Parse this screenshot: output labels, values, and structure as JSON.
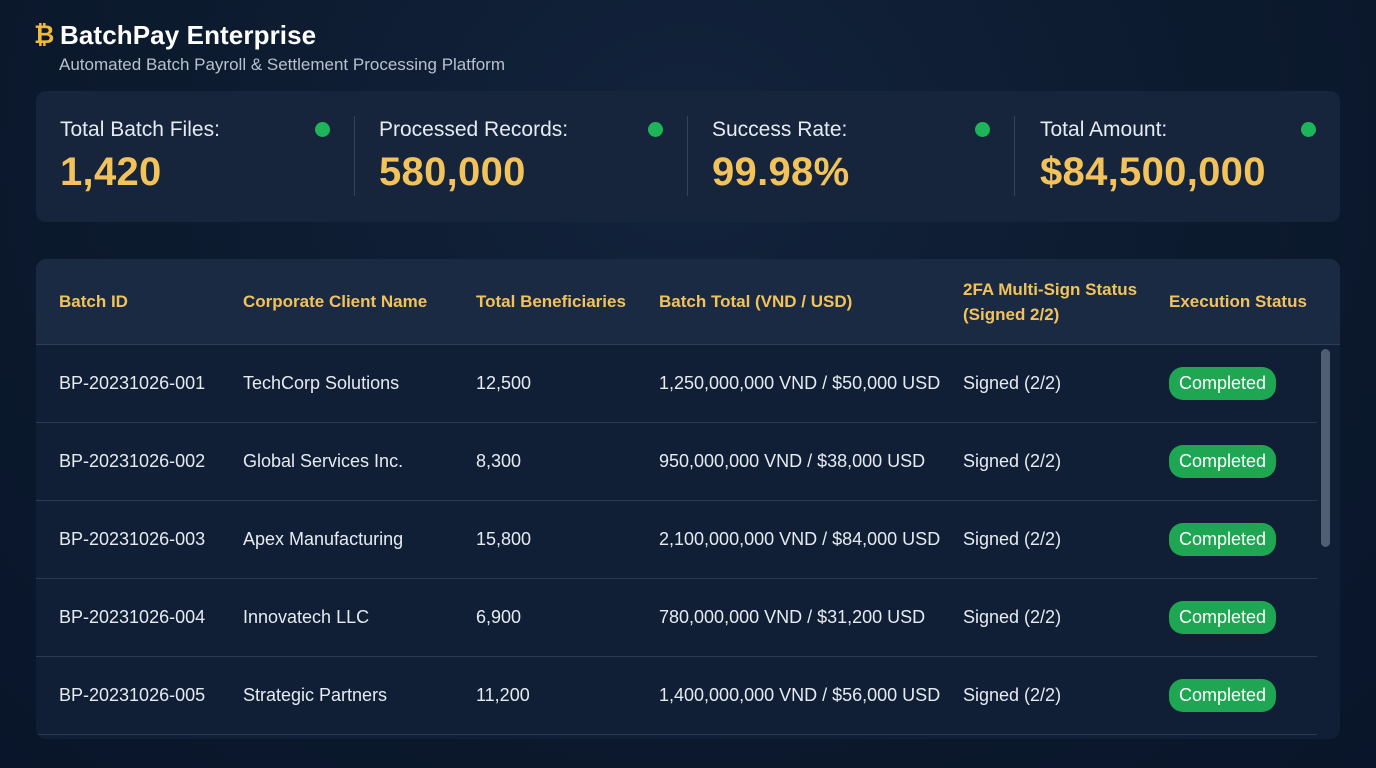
{
  "header": {
    "icon": "bitcoin-icon",
    "icon_glyph": "₿",
    "title": "BatchPay Enterprise",
    "subtitle": "Automated Batch Payroll & Settlement Processing Platform"
  },
  "stats": [
    {
      "label": "Total Batch Files:",
      "value": "1,420",
      "status_color": "#1db45a"
    },
    {
      "label": "Processed Records:",
      "value": "580,000",
      "status_color": "#1db45a"
    },
    {
      "label": "Success Rate:",
      "value": "99.98%",
      "status_color": "#1db45a"
    },
    {
      "label": "Total Amount:",
      "value": "$84,500,000",
      "status_color": "#1db45a"
    }
  ],
  "table": {
    "columns": [
      "Batch ID",
      "Corporate Client Name",
      "Total Beneficiaries",
      "Batch Total (VND / USD)",
      "2FA Multi-Sign Status (Signed 2/2)",
      "Execution Status"
    ],
    "rows": [
      {
        "batch_id": "BP-20231026-001",
        "client": "TechCorp Solutions",
        "beneficiaries": "12,500",
        "total": "1,250,000,000 VND / $50,000 USD",
        "sign_status": "Signed (2/2)",
        "execution": "Completed"
      },
      {
        "batch_id": "BP-20231026-002",
        "client": "Global Services Inc.",
        "beneficiaries": "8,300",
        "total": "950,000,000 VND / $38,000 USD",
        "sign_status": "Signed (2/2)",
        "execution": "Completed"
      },
      {
        "batch_id": "BP-20231026-003",
        "client": "Apex Manufacturing",
        "beneficiaries": "15,800",
        "total": "2,100,000,000 VND / $84,000 USD",
        "sign_status": "Signed (2/2)",
        "execution": "Completed"
      },
      {
        "batch_id": "BP-20231026-004",
        "client": "Innovatech LLC",
        "beneficiaries": "6,900",
        "total": "780,000,000 VND / $31,200 USD",
        "sign_status": "Signed (2/2)",
        "execution": "Completed"
      },
      {
        "batch_id": "BP-20231026-005",
        "client": "Strategic Partners",
        "beneficiaries": "11,200",
        "total": "1,400,000,000 VND / $56,000 USD",
        "sign_status": "Signed (2/2)",
        "execution": "Completed"
      }
    ]
  },
  "colors": {
    "accent": "#f2c25b",
    "success": "#1ea653",
    "background": "#0c1a2e"
  }
}
